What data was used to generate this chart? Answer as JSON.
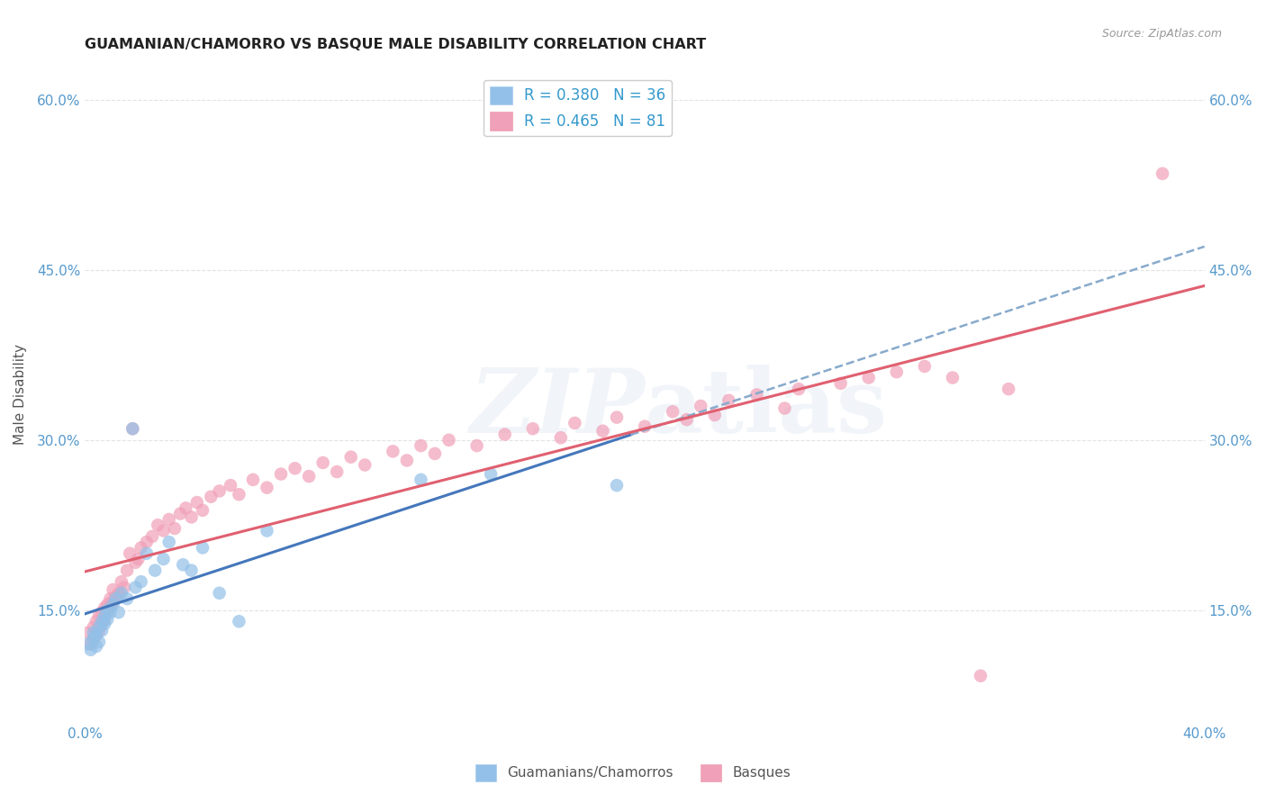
{
  "title": "GUAMANIAN/CHAMORRO VS BASQUE MALE DISABILITY CORRELATION CHART",
  "source": "Source: ZipAtlas.com",
  "ylabel": "Male Disability",
  "x_min": 0.0,
  "x_max": 0.4,
  "y_min": 0.05,
  "y_max": 0.63,
  "y_ticks": [
    0.15,
    0.3,
    0.45,
    0.6
  ],
  "y_tick_labels": [
    "15.0%",
    "30.0%",
    "45.0%",
    "60.0%"
  ],
  "x_ticks": [
    0.0,
    0.1,
    0.2,
    0.3,
    0.4
  ],
  "x_tick_labels": [
    "0.0%",
    "",
    "",
    "",
    "40.0%"
  ],
  "color_blue": "#92C0E8",
  "color_pink": "#F0A0B8",
  "color_blue_line": "#4477BB",
  "color_pink_line": "#E06070",
  "color_blue_dash": "#88AACC",
  "color_text_blue": "#3399CC",
  "color_axis_ticks": "#5599CC",
  "guamanian_x": [
    0.001,
    0.002,
    0.003,
    0.003,
    0.004,
    0.004,
    0.005,
    0.005,
    0.006,
    0.006,
    0.007,
    0.007,
    0.008,
    0.008,
    0.009,
    0.01,
    0.011,
    0.012,
    0.013,
    0.015,
    0.017,
    0.018,
    0.02,
    0.022,
    0.025,
    0.028,
    0.03,
    0.035,
    0.038,
    0.042,
    0.048,
    0.055,
    0.065,
    0.12,
    0.145,
    0.19
  ],
  "guamanian_y": [
    0.12,
    0.115,
    0.13,
    0.125,
    0.118,
    0.128,
    0.135,
    0.122,
    0.14,
    0.132,
    0.138,
    0.145,
    0.15,
    0.142,
    0.148,
    0.155,
    0.16,
    0.148,
    0.165,
    0.16,
    0.31,
    0.17,
    0.175,
    0.2,
    0.185,
    0.195,
    0.21,
    0.19,
    0.185,
    0.205,
    0.165,
    0.14,
    0.22,
    0.265,
    0.27,
    0.26
  ],
  "basque_x": [
    0.001,
    0.002,
    0.003,
    0.003,
    0.004,
    0.004,
    0.005,
    0.005,
    0.006,
    0.006,
    0.007,
    0.007,
    0.008,
    0.008,
    0.009,
    0.009,
    0.01,
    0.01,
    0.011,
    0.012,
    0.013,
    0.014,
    0.015,
    0.016,
    0.017,
    0.018,
    0.019,
    0.02,
    0.022,
    0.024,
    0.026,
    0.028,
    0.03,
    0.032,
    0.034,
    0.036,
    0.038,
    0.04,
    0.042,
    0.045,
    0.048,
    0.052,
    0.055,
    0.06,
    0.065,
    0.07,
    0.075,
    0.08,
    0.085,
    0.09,
    0.095,
    0.1,
    0.11,
    0.115,
    0.12,
    0.125,
    0.13,
    0.14,
    0.15,
    0.16,
    0.17,
    0.175,
    0.185,
    0.19,
    0.2,
    0.21,
    0.215,
    0.22,
    0.225,
    0.23,
    0.24,
    0.25,
    0.255,
    0.27,
    0.28,
    0.29,
    0.3,
    0.31,
    0.32,
    0.33,
    0.385
  ],
  "basque_y": [
    0.13,
    0.12,
    0.125,
    0.135,
    0.128,
    0.14,
    0.132,
    0.145,
    0.138,
    0.148,
    0.152,
    0.142,
    0.155,
    0.148,
    0.16,
    0.152,
    0.158,
    0.168,
    0.162,
    0.165,
    0.175,
    0.17,
    0.185,
    0.2,
    0.31,
    0.192,
    0.195,
    0.205,
    0.21,
    0.215,
    0.225,
    0.22,
    0.23,
    0.222,
    0.235,
    0.24,
    0.232,
    0.245,
    0.238,
    0.25,
    0.255,
    0.26,
    0.252,
    0.265,
    0.258,
    0.27,
    0.275,
    0.268,
    0.28,
    0.272,
    0.285,
    0.278,
    0.29,
    0.282,
    0.295,
    0.288,
    0.3,
    0.295,
    0.305,
    0.31,
    0.302,
    0.315,
    0.308,
    0.32,
    0.312,
    0.325,
    0.318,
    0.33,
    0.322,
    0.335,
    0.34,
    0.328,
    0.345,
    0.35,
    0.355,
    0.36,
    0.365,
    0.355,
    0.092,
    0.345,
    0.535
  ]
}
